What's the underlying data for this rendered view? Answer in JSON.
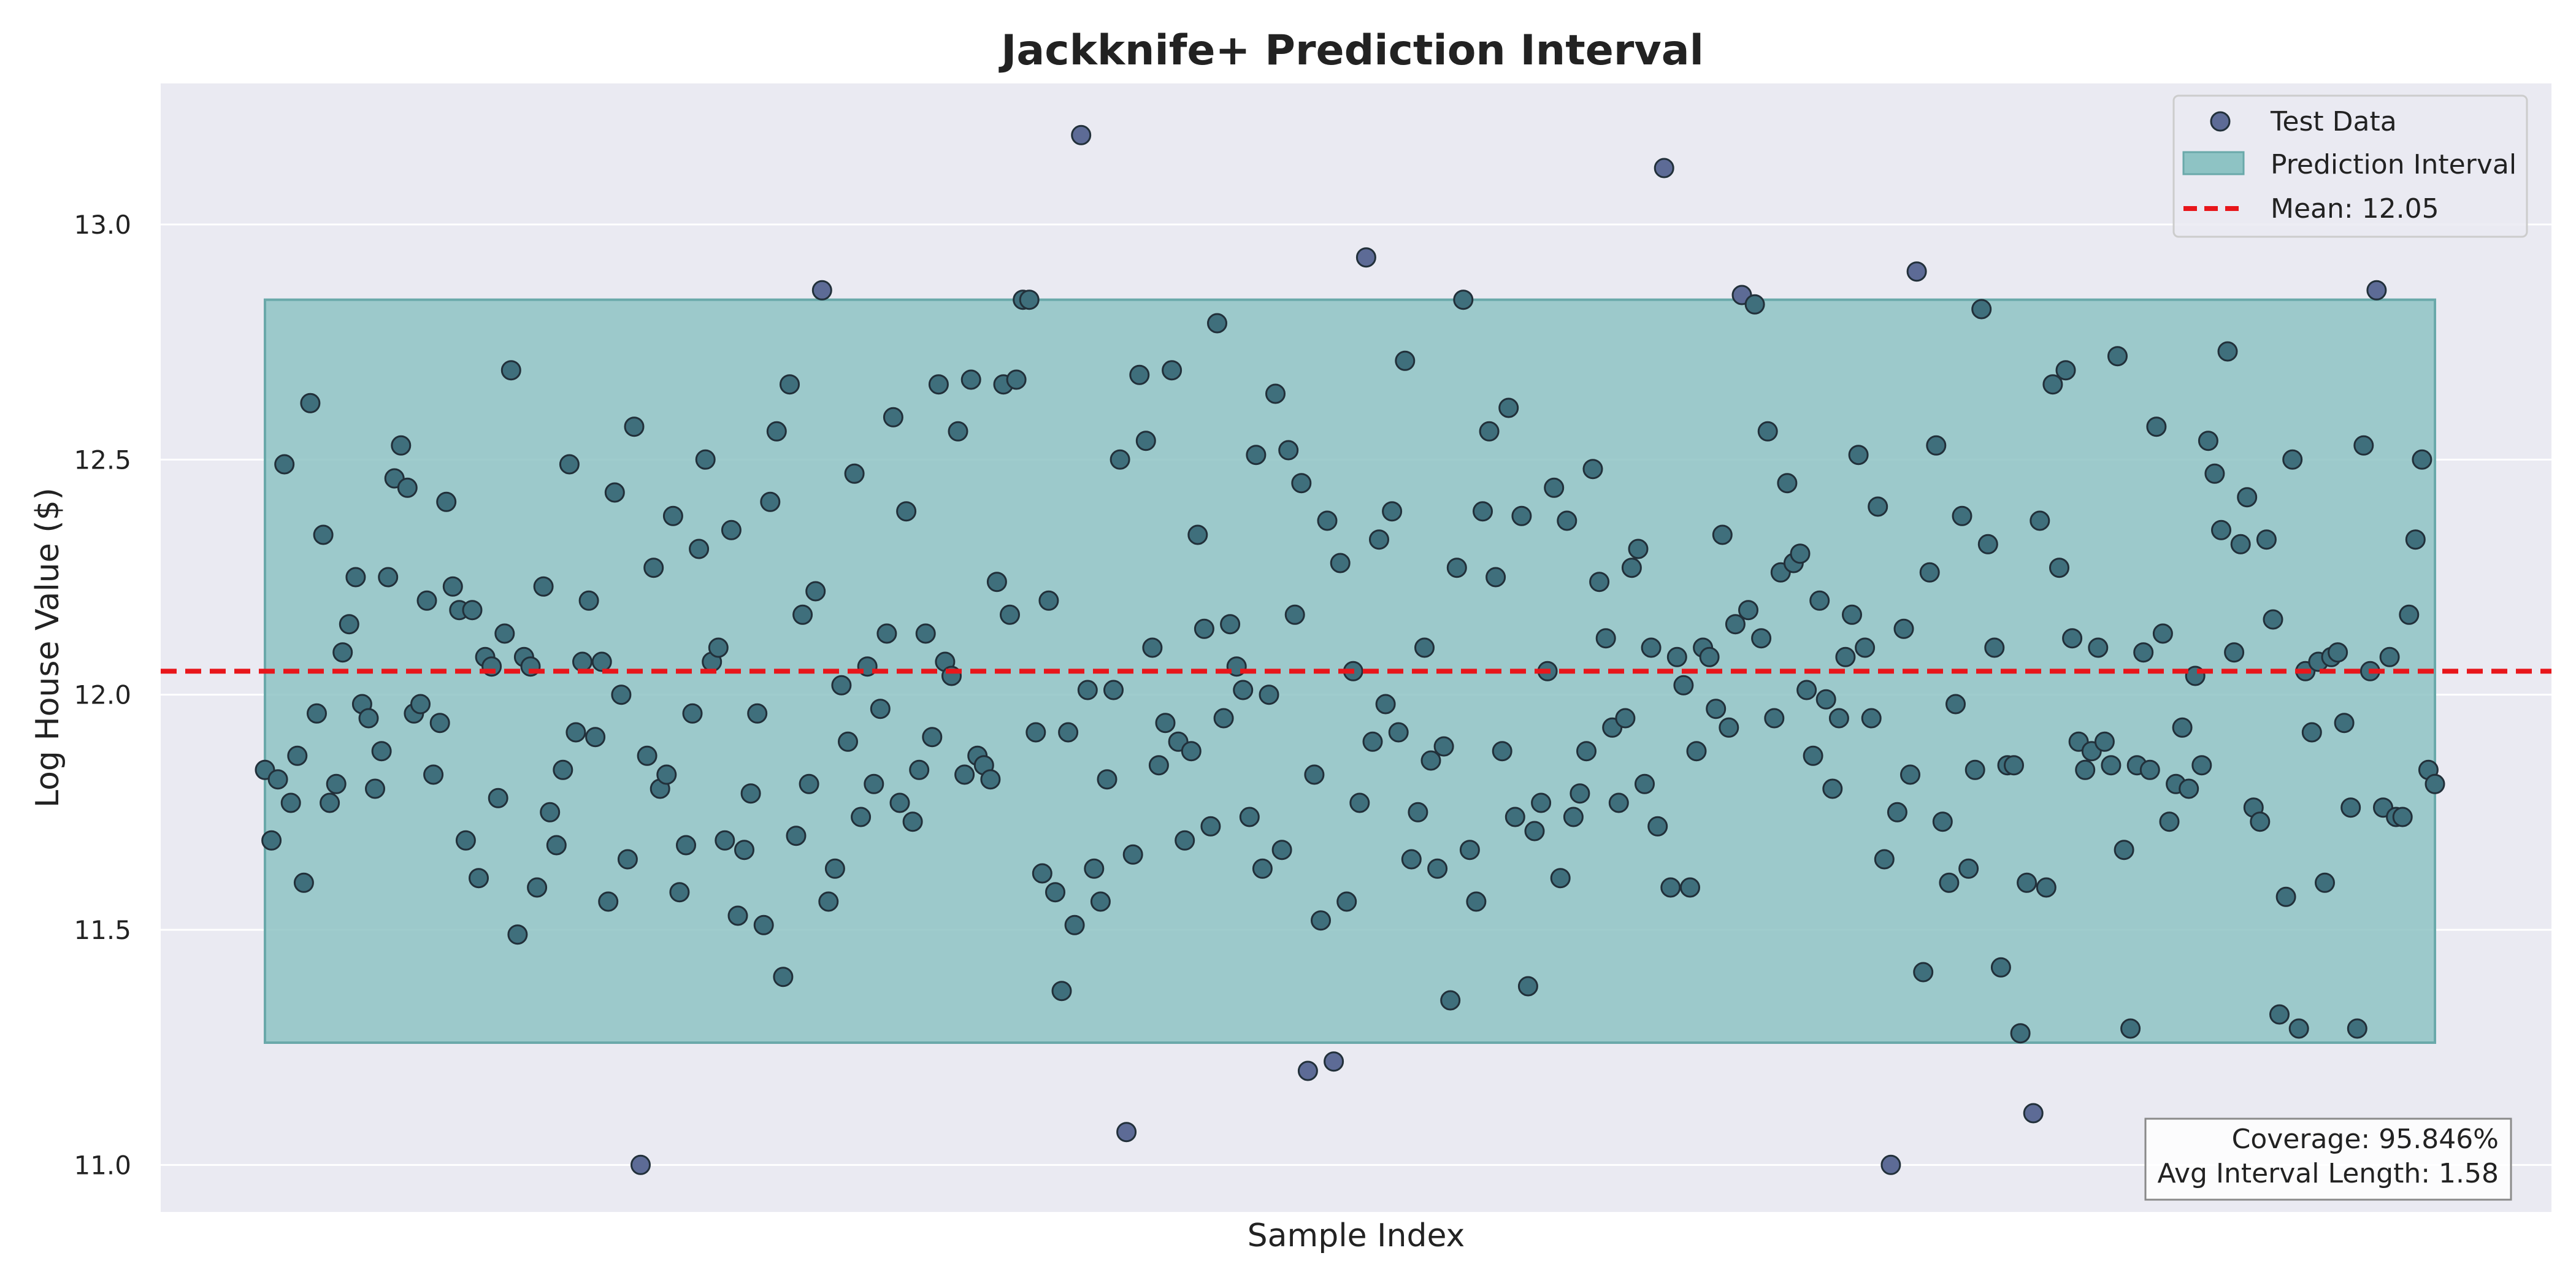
{
  "chart_data": {
    "type": "scatter",
    "title": "Jackknife+ Prediction Interval",
    "xlabel": "Sample Index",
    "ylabel": "Log House Value ($)",
    "ylim": [
      10.9,
      13.3
    ],
    "yticks": [
      "11.0",
      "11.5",
      "12.0",
      "12.5",
      "13.0"
    ],
    "grid": true,
    "legend_position": "top-right",
    "series": [
      {
        "name": "Test Data",
        "values": [
          11.84,
          11.69,
          11.82,
          12.49,
          11.77,
          11.87,
          11.6,
          12.62,
          11.96,
          12.34,
          11.77,
          11.81,
          12.09,
          12.15,
          12.25,
          11.98,
          11.95,
          11.8,
          11.88,
          12.25,
          12.46,
          12.53,
          12.44,
          11.96,
          11.98,
          12.2,
          11.83,
          11.94,
          12.41,
          12.23,
          12.18,
          11.69,
          12.18,
          11.61,
          12.08,
          12.06,
          11.78,
          12.13,
          12.69,
          11.49,
          12.08,
          12.06,
          11.59,
          12.23,
          11.75,
          11.68,
          11.84,
          12.49,
          11.92,
          12.07,
          12.2,
          11.91,
          12.07,
          11.56,
          12.43,
          12.0,
          11.65,
          12.57,
          11.0,
          11.87,
          12.27,
          11.8,
          11.83,
          12.38,
          11.58,
          11.68,
          11.96,
          12.31,
          12.5,
          12.07,
          12.1,
          11.69,
          12.35,
          11.53,
          11.67,
          11.79,
          11.96,
          11.51,
          12.41,
          12.56,
          11.4,
          12.66,
          11.7,
          12.17,
          11.81,
          12.22,
          12.86,
          11.56,
          11.63,
          12.02,
          11.9,
          12.47,
          11.74,
          12.06,
          11.81,
          11.97,
          12.13,
          12.59,
          11.77,
          12.39,
          11.73,
          11.84,
          12.13,
          11.91,
          12.66,
          12.07,
          12.04,
          12.56,
          11.83,
          12.67,
          11.87,
          11.85,
          11.82,
          12.24,
          12.66,
          12.17,
          12.67,
          12.84,
          12.84,
          11.92,
          11.62,
          12.2,
          11.58,
          11.37,
          11.92,
          11.51,
          13.19,
          12.01,
          11.63,
          11.56,
          11.82,
          12.01,
          12.5,
          11.07,
          11.66,
          12.68,
          12.54,
          12.1,
          11.85,
          11.94,
          12.69,
          11.9,
          11.69,
          11.88,
          12.34,
          12.14,
          11.72,
          12.79,
          11.95,
          12.15,
          12.06,
          12.01,
          11.74,
          12.51,
          11.63,
          12.0,
          12.64,
          11.67,
          12.52,
          12.17,
          12.45,
          11.2,
          11.83,
          11.52,
          12.37,
          11.22,
          12.28,
          11.56,
          12.05,
          11.77,
          12.93,
          11.9,
          12.33,
          11.98,
          12.39,
          11.92,
          12.71,
          11.65,
          11.75,
          12.1,
          11.86,
          11.63,
          11.89,
          11.35,
          12.27,
          12.84,
          11.67,
          11.56,
          12.39,
          12.56,
          12.25,
          11.88,
          12.61,
          11.74,
          12.38,
          11.38,
          11.71,
          11.77,
          12.05,
          12.44,
          11.61,
          12.37,
          11.74,
          11.79,
          11.88,
          12.48,
          12.24,
          12.12,
          11.93,
          11.77,
          11.95,
          12.27,
          12.31,
          11.81,
          12.1,
          11.72,
          13.12,
          11.59,
          12.08,
          12.02,
          11.59,
          11.88,
          12.1,
          12.08,
          11.97,
          12.34,
          11.93,
          12.15,
          12.85,
          12.18,
          12.83,
          12.12,
          12.56,
          11.95,
          12.26,
          12.45,
          12.28,
          12.3,
          12.01,
          11.87,
          12.2,
          11.99,
          11.8,
          11.95,
          12.08,
          12.17,
          12.51,
          12.1,
          11.95,
          12.4,
          11.65,
          11.0,
          11.75,
          12.14,
          11.83,
          12.9,
          11.41,
          12.26,
          12.53,
          11.73,
          11.6,
          11.98,
          12.38,
          11.63,
          11.84,
          12.82,
          12.32,
          12.1,
          11.42,
          11.85,
          11.85,
          11.28,
          11.6,
          11.11,
          12.37,
          11.59,
          12.66,
          12.27,
          12.69,
          12.12,
          11.9,
          11.84,
          11.88,
          12.1,
          11.9,
          11.85,
          12.72,
          11.67,
          11.29,
          11.85,
          12.09,
          11.84,
          12.57,
          12.13,
          11.73,
          11.81,
          11.93,
          11.8,
          12.04,
          11.85,
          12.54,
          12.47,
          12.35,
          12.73,
          12.09,
          12.32,
          12.42,
          11.76,
          11.73,
          12.33,
          12.16,
          11.32,
          11.57,
          12.5,
          11.29,
          12.05,
          11.92,
          12.07,
          11.6,
          12.08,
          12.09,
          11.94,
          11.76,
          11.29,
          12.53,
          12.05,
          12.86,
          11.76,
          12.08,
          11.74,
          11.74,
          12.17,
          12.33,
          12.5,
          11.84,
          11.81
        ]
      },
      {
        "name": "Prediction Interval",
        "lower": 11.26,
        "upper": 12.84
      },
      {
        "name": "Mean: 12.05",
        "value": 12.05
      }
    ],
    "stats": {
      "coverage": "Coverage: 95.846%",
      "avg_interval_length": "Avg Interval Length: 1.58"
    },
    "colors": {
      "background": "#eaeaf2",
      "grid": "#ffffff",
      "point_inside": "#3f6f7c",
      "point_outside": "#5d6b96",
      "point_edge": "#22303a",
      "band_fill": "#8ec3c4",
      "band_edge": "#6aa9aa",
      "mean_line": "#e8161b"
    }
  }
}
